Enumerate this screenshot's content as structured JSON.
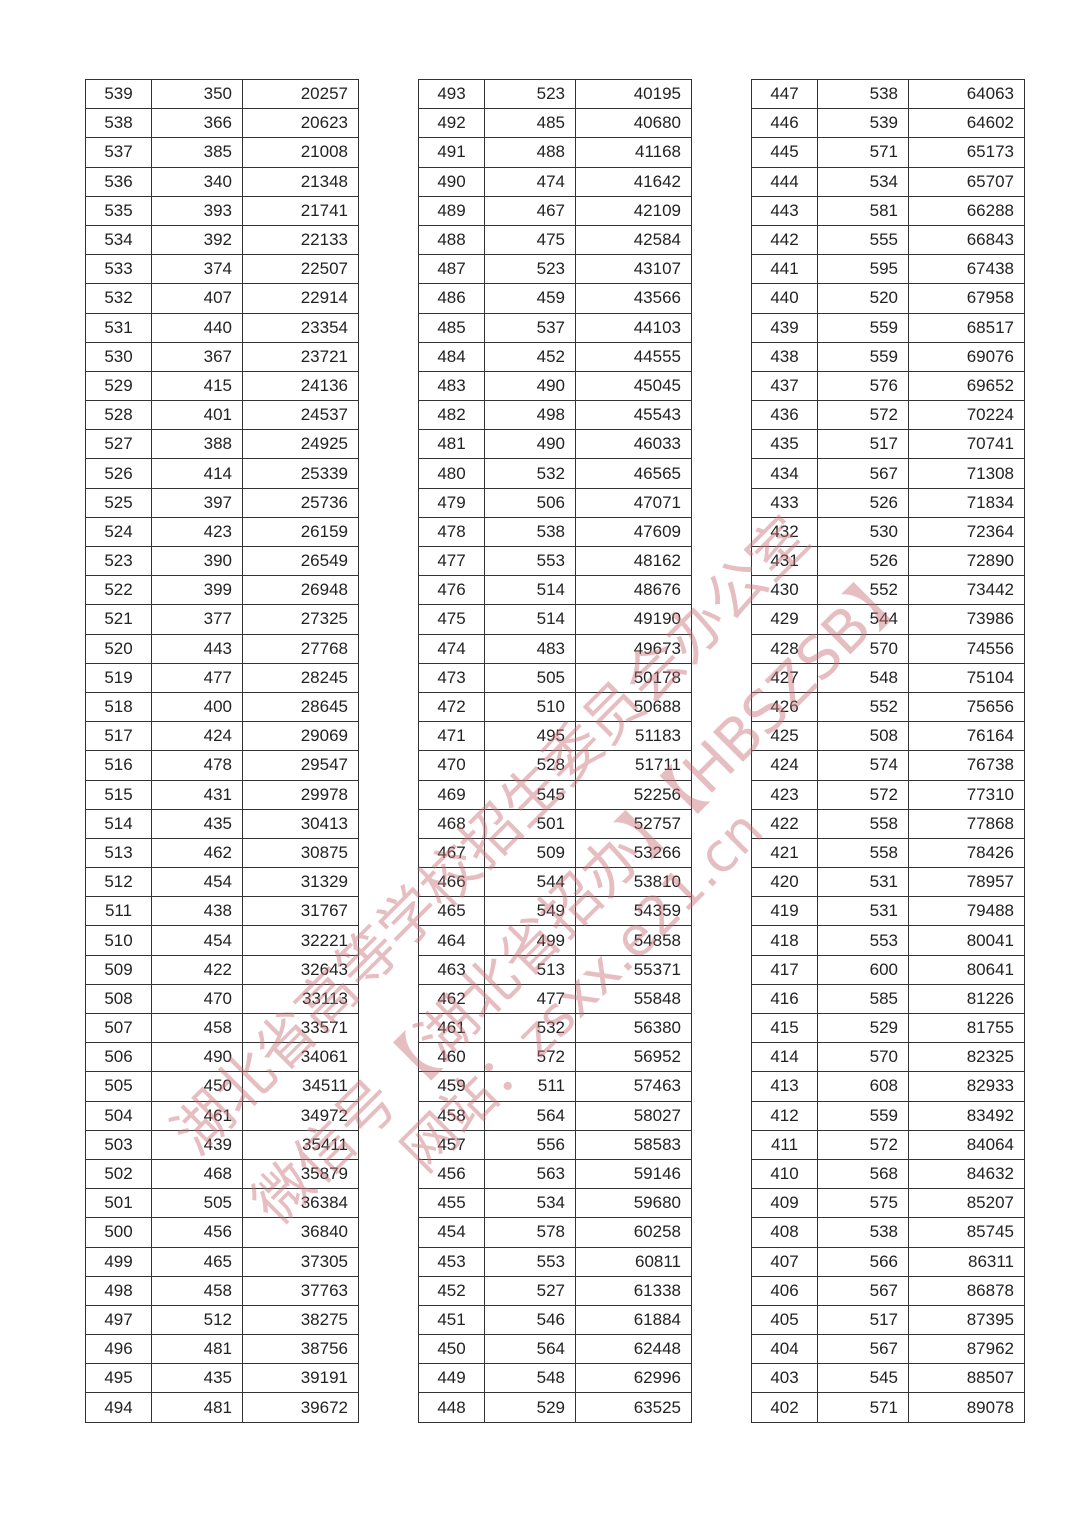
{
  "tables": [
    [
      [
        539,
        350,
        20257
      ],
      [
        538,
        366,
        20623
      ],
      [
        537,
        385,
        21008
      ],
      [
        536,
        340,
        21348
      ],
      [
        535,
        393,
        21741
      ],
      [
        534,
        392,
        22133
      ],
      [
        533,
        374,
        22507
      ],
      [
        532,
        407,
        22914
      ],
      [
        531,
        440,
        23354
      ],
      [
        530,
        367,
        23721
      ],
      [
        529,
        415,
        24136
      ],
      [
        528,
        401,
        24537
      ],
      [
        527,
        388,
        24925
      ],
      [
        526,
        414,
        25339
      ],
      [
        525,
        397,
        25736
      ],
      [
        524,
        423,
        26159
      ],
      [
        523,
        390,
        26549
      ],
      [
        522,
        399,
        26948
      ],
      [
        521,
        377,
        27325
      ],
      [
        520,
        443,
        27768
      ],
      [
        519,
        477,
        28245
      ],
      [
        518,
        400,
        28645
      ],
      [
        517,
        424,
        29069
      ],
      [
        516,
        478,
        29547
      ],
      [
        515,
        431,
        29978
      ],
      [
        514,
        435,
        30413
      ],
      [
        513,
        462,
        30875
      ],
      [
        512,
        454,
        31329
      ],
      [
        511,
        438,
        31767
      ],
      [
        510,
        454,
        32221
      ],
      [
        509,
        422,
        32643
      ],
      [
        508,
        470,
        33113
      ],
      [
        507,
        458,
        33571
      ],
      [
        506,
        490,
        34061
      ],
      [
        505,
        450,
        34511
      ],
      [
        504,
        461,
        34972
      ],
      [
        503,
        439,
        35411
      ],
      [
        502,
        468,
        35879
      ],
      [
        501,
        505,
        36384
      ],
      [
        500,
        456,
        36840
      ],
      [
        499,
        465,
        37305
      ],
      [
        498,
        458,
        37763
      ],
      [
        497,
        512,
        38275
      ],
      [
        496,
        481,
        38756
      ],
      [
        495,
        435,
        39191
      ],
      [
        494,
        481,
        39672
      ]
    ],
    [
      [
        493,
        523,
        40195
      ],
      [
        492,
        485,
        40680
      ],
      [
        491,
        488,
        41168
      ],
      [
        490,
        474,
        41642
      ],
      [
        489,
        467,
        42109
      ],
      [
        488,
        475,
        42584
      ],
      [
        487,
        523,
        43107
      ],
      [
        486,
        459,
        43566
      ],
      [
        485,
        537,
        44103
      ],
      [
        484,
        452,
        44555
      ],
      [
        483,
        490,
        45045
      ],
      [
        482,
        498,
        45543
      ],
      [
        481,
        490,
        46033
      ],
      [
        480,
        532,
        46565
      ],
      [
        479,
        506,
        47071
      ],
      [
        478,
        538,
        47609
      ],
      [
        477,
        553,
        48162
      ],
      [
        476,
        514,
        48676
      ],
      [
        475,
        514,
        49190
      ],
      [
        474,
        483,
        49673
      ],
      [
        473,
        505,
        50178
      ],
      [
        472,
        510,
        50688
      ],
      [
        471,
        495,
        51183
      ],
      [
        470,
        528,
        51711
      ],
      [
        469,
        545,
        52256
      ],
      [
        468,
        501,
        52757
      ],
      [
        467,
        509,
        53266
      ],
      [
        466,
        544,
        53810
      ],
      [
        465,
        549,
        54359
      ],
      [
        464,
        499,
        54858
      ],
      [
        463,
        513,
        55371
      ],
      [
        462,
        477,
        55848
      ],
      [
        461,
        532,
        56380
      ],
      [
        460,
        572,
        56952
      ],
      [
        459,
        511,
        57463
      ],
      [
        458,
        564,
        58027
      ],
      [
        457,
        556,
        58583
      ],
      [
        456,
        563,
        59146
      ],
      [
        455,
        534,
        59680
      ],
      [
        454,
        578,
        60258
      ],
      [
        453,
        553,
        60811
      ],
      [
        452,
        527,
        61338
      ],
      [
        451,
        546,
        61884
      ],
      [
        450,
        564,
        62448
      ],
      [
        449,
        548,
        62996
      ],
      [
        448,
        529,
        63525
      ]
    ],
    [
      [
        447,
        538,
        64063
      ],
      [
        446,
        539,
        64602
      ],
      [
        445,
        571,
        65173
      ],
      [
        444,
        534,
        65707
      ],
      [
        443,
        581,
        66288
      ],
      [
        442,
        555,
        66843
      ],
      [
        441,
        595,
        67438
      ],
      [
        440,
        520,
        67958
      ],
      [
        439,
        559,
        68517
      ],
      [
        438,
        559,
        69076
      ],
      [
        437,
        576,
        69652
      ],
      [
        436,
        572,
        70224
      ],
      [
        435,
        517,
        70741
      ],
      [
        434,
        567,
        71308
      ],
      [
        433,
        526,
        71834
      ],
      [
        432,
        530,
        72364
      ],
      [
        431,
        526,
        72890
      ],
      [
        430,
        552,
        73442
      ],
      [
        429,
        544,
        73986
      ],
      [
        428,
        570,
        74556
      ],
      [
        427,
        548,
        75104
      ],
      [
        426,
        552,
        75656
      ],
      [
        425,
        508,
        76164
      ],
      [
        424,
        574,
        76738
      ],
      [
        423,
        572,
        77310
      ],
      [
        422,
        558,
        77868
      ],
      [
        421,
        558,
        78426
      ],
      [
        420,
        531,
        78957
      ],
      [
        419,
        531,
        79488
      ],
      [
        418,
        553,
        80041
      ],
      [
        417,
        600,
        80641
      ],
      [
        416,
        585,
        81226
      ],
      [
        415,
        529,
        81755
      ],
      [
        414,
        570,
        82325
      ],
      [
        413,
        608,
        82933
      ],
      [
        412,
        559,
        83492
      ],
      [
        411,
        572,
        84064
      ],
      [
        410,
        568,
        84632
      ],
      [
        409,
        575,
        85207
      ],
      [
        408,
        538,
        85745
      ],
      [
        407,
        566,
        86311
      ],
      [
        406,
        567,
        86878
      ],
      [
        405,
        517,
        87395
      ],
      [
        404,
        567,
        87962
      ],
      [
        403,
        545,
        88507
      ],
      [
        402,
        571,
        89078
      ]
    ]
  ],
  "watermark": {
    "lines": [
      "湖北省高等学校招生委员会办公室",
      "微信号【湖北省招办】【HBSZSB】",
      "网站：zsxx.e21.cn"
    ],
    "color": "#c86e78"
  }
}
